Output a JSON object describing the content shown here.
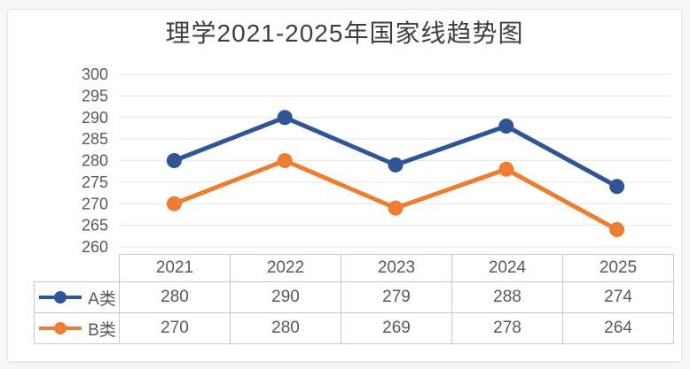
{
  "title": "理学2021-2025年国家线趋势图",
  "chart_data": {
    "type": "line",
    "title": "理学2021-2025年国家线趋势图",
    "categories": [
      "2021",
      "2022",
      "2023",
      "2024",
      "2025"
    ],
    "series": [
      {
        "name": "A类",
        "color": "#2F5597",
        "values": [
          280,
          290,
          279,
          288,
          274
        ]
      },
      {
        "name": "B类",
        "color": "#ED7D31",
        "values": [
          270,
          280,
          269,
          278,
          264
        ]
      }
    ],
    "ylim": [
      260,
      300
    ],
    "ytick_step": 5,
    "yticks": [
      260,
      265,
      270,
      275,
      280,
      285,
      290,
      295,
      300
    ],
    "grid": "horizontal-only",
    "legend_position": "table-left",
    "gridline_color": "#e6e6e6",
    "axis_label_color": "#595959",
    "marker": "circle",
    "line_width": 5,
    "marker_radius": 8.5
  },
  "styles": {
    "page_background": "#f7f7f7",
    "card_background": "#ffffff",
    "card_border": "#e4e4e4",
    "title_color": "#3f3f3f",
    "table_border": "#c9c9c9",
    "table_text": "#595959"
  }
}
